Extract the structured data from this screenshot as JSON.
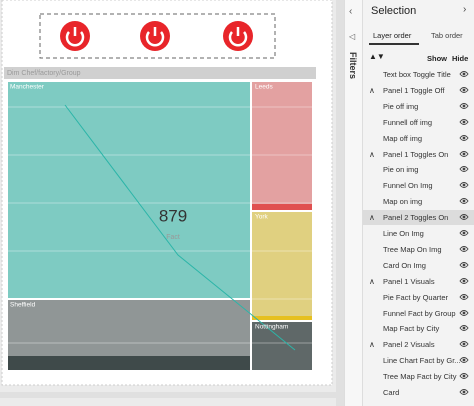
{
  "canvas": {
    "visual_header": "Dim Chef/factory/Group",
    "tiles": [
      "Manchester",
      "Leeds",
      "York",
      "Sheffield",
      "Nottingham"
    ],
    "card": {
      "value": 879,
      "label": "Fact"
    }
  },
  "filters": "Filters",
  "pane": {
    "title": "Selection",
    "tabs": [
      "Layer order",
      "Tab order"
    ],
    "show": "Show",
    "hide": "Hide",
    "items": [
      {
        "label": "Text box Toggle Title",
        "group": false
      },
      {
        "label": "Panel 1 Toggle Off",
        "group": true
      },
      {
        "label": "Pie off img",
        "group": false
      },
      {
        "label": "Funnell off img",
        "group": false
      },
      {
        "label": "Map off img",
        "group": false
      },
      {
        "label": "Panel 1 Toggles On",
        "group": true
      },
      {
        "label": "Pie on img",
        "group": false
      },
      {
        "label": "Funnel On Img",
        "group": false
      },
      {
        "label": "Map on img",
        "group": false
      },
      {
        "label": "Panel 2 Toggles On",
        "group": true,
        "selected": true
      },
      {
        "label": "Line On Img",
        "group": false
      },
      {
        "label": "Tree Map On Img",
        "group": false
      },
      {
        "label": "Card On Img",
        "group": false
      },
      {
        "label": "Panel 1 Visuals",
        "group": true
      },
      {
        "label": "Pie Fact by Quarter",
        "group": false
      },
      {
        "label": "Funnel Fact by Group",
        "group": false
      },
      {
        "label": "Map Fact by City",
        "group": false
      },
      {
        "label": "Panel 2 Visuals",
        "group": true
      },
      {
        "label": "Line Chart Fact by Gr...",
        "group": false
      },
      {
        "label": "Tree Map Fact by City",
        "group": false
      },
      {
        "label": "Card",
        "group": false
      }
    ]
  }
}
